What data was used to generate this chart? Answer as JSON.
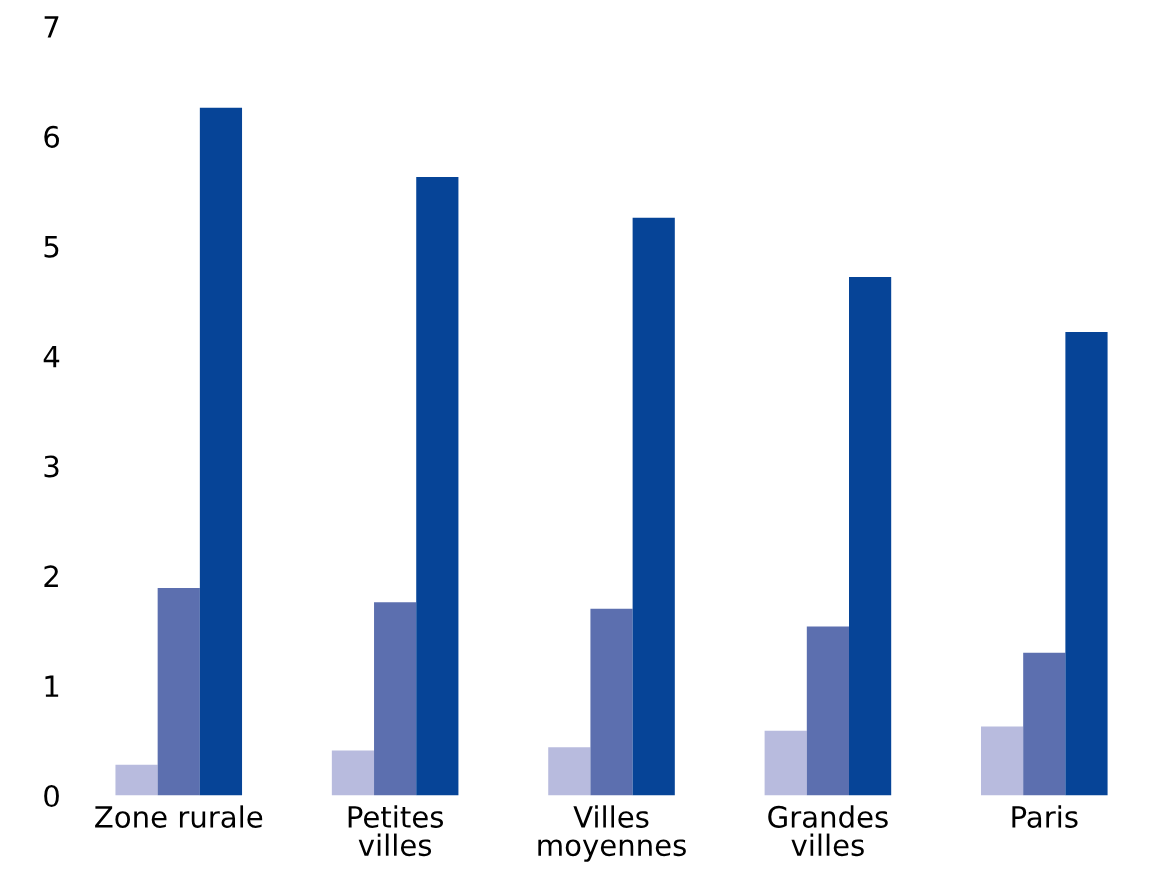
{
  "chart_data": {
    "type": "bar",
    "categories": [
      "Zone rurale",
      "Petites\nvilles",
      "Villes\nmoyennes",
      "Grandes\nvilles",
      "Paris"
    ],
    "series": [
      {
        "color": "#b8bbde",
        "values": [
          0.28,
          0.41,
          0.44,
          0.59,
          0.63
        ]
      },
      {
        "color": "#5c6faf",
        "values": [
          1.89,
          1.76,
          1.7,
          1.54,
          1.3
        ]
      },
      {
        "color": "#064497",
        "values": [
          6.26,
          5.63,
          5.26,
          4.72,
          4.22
        ]
      }
    ],
    "ylim": [
      0,
      7
    ],
    "yticks": [
      0,
      1,
      2,
      3,
      4,
      5,
      6,
      7
    ],
    "grid": false,
    "legend": false
  }
}
